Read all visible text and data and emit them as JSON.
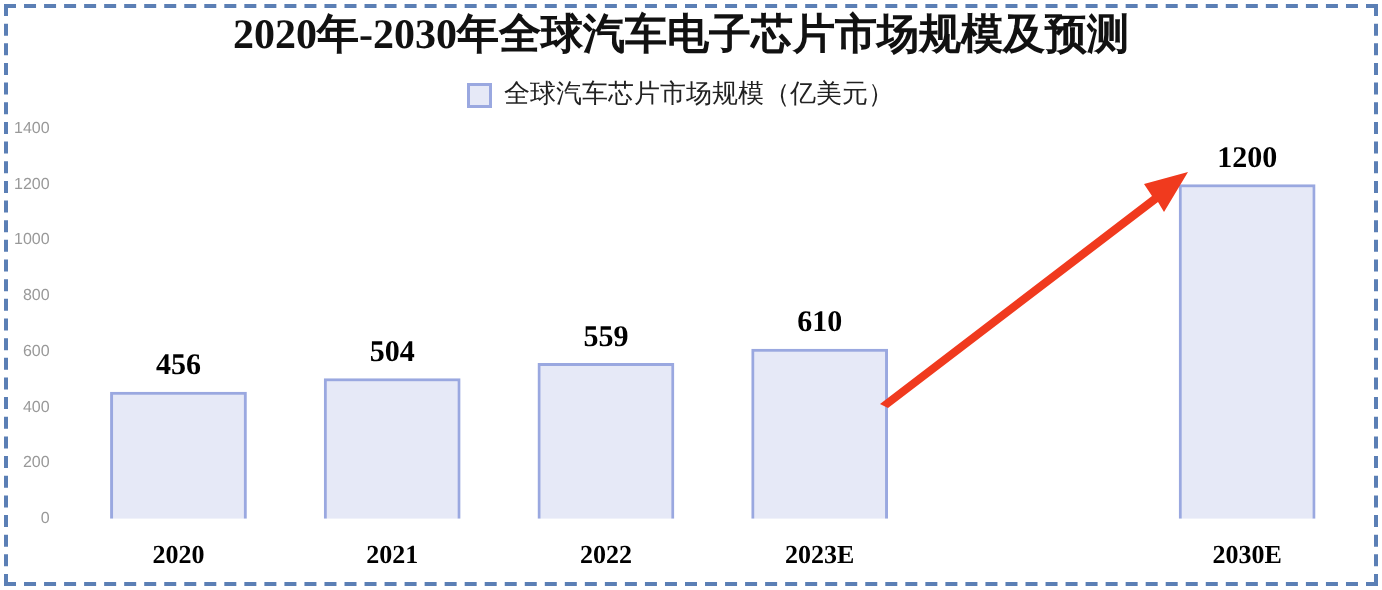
{
  "chart_data": {
    "type": "bar",
    "title": "2020年-2030年全球汽车电子芯片市场规模及预测",
    "categories": [
      "2020",
      "2021",
      "2022",
      "2023E",
      null,
      "2030E"
    ],
    "series": [
      {
        "name": "全球汽车芯片市场规模（亿美元）",
        "color": "#9aa8e0",
        "values": [
          456,
          504,
          559,
          610,
          null,
          1200
        ]
      }
    ],
    "ylim": [
      0,
      1400
    ],
    "yticks": [
      0,
      200,
      400,
      600,
      800,
      1000,
      1200,
      1400
    ],
    "grid": false,
    "legend": "top",
    "data_labels": true
  }
}
